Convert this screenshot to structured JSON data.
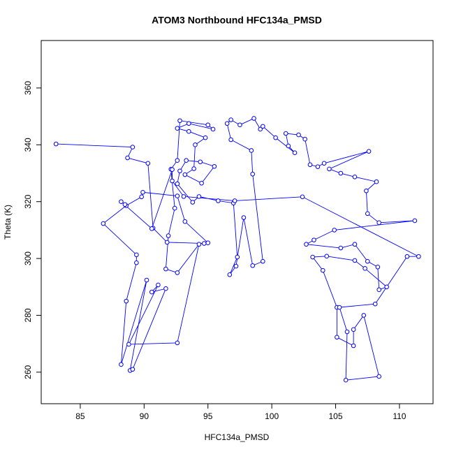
{
  "chart_data": {
    "type": "line",
    "markers": true,
    "title": "ATOM3 Northbound HFC134a_PMSD",
    "x_label": "HFC134a_PMSD",
    "y_label": "Theta (K)",
    "color": "#0000ff",
    "xlim": [
      81.94,
      112.63
    ],
    "ylim": [
      248.9,
      376.7
    ],
    "xticks": [
      85,
      90,
      95,
      100,
      105,
      110
    ],
    "yticks": [
      260,
      280,
      300,
      320,
      340,
      360
    ],
    "x": [
      83.1,
      89.1,
      88.7,
      90.3,
      90.7,
      91.8,
      94.7,
      95,
      93.2,
      92.6,
      89.9,
      89.8,
      88.6,
      86.8,
      89.4,
      89.4,
      88.6,
      88.2,
      90.2,
      88.9,
      89.1,
      91.7,
      90.6,
      91.1,
      88.8,
      92.6,
      94.3,
      92.6,
      91.7,
      91.9,
      92.4,
      92.1,
      92.6,
      92.8,
      95,
      95.4,
      93.5,
      92.6,
      93.5,
      94.8,
      94,
      93.9,
      93.2,
      94.5,
      95.5,
      94.4,
      93.3,
      92.8,
      92.6,
      93.8,
      94.3,
      95.8,
      97,
      97.3,
      96.7,
      97.2,
      97.8,
      98.5,
      99.3,
      98.5,
      98.4,
      96.8,
      96.5,
      96.8,
      97.5,
      98.6,
      99.1,
      99.3,
      100.3,
      101.8,
      101.3,
      101.1,
      102.1,
      102.6,
      103,
      103.6,
      104.1,
      107.6,
      104.5,
      105.4,
      106.5,
      108.2,
      107.4,
      107.5,
      108.4,
      111.2,
      104.9,
      103.3,
      102.7,
      105.4,
      106.5,
      107.5,
      108.3,
      108.4,
      109,
      107.3,
      106.5,
      104.3,
      103.2,
      104,
      105.1,
      105.1,
      106.4,
      106.4,
      107.2,
      108.4,
      105.8,
      105.9,
      105.3,
      108.1,
      110.6,
      111.5,
      102.4,
      97.1,
      93.1,
      92.2,
      92.2,
      90.6,
      88.2,
      88.5
    ],
    "values": [
      340.3,
      339.2,
      335.4,
      333.5,
      310.7,
      305.7,
      305.3,
      305.5,
      313,
      322,
      323.3,
      321.7,
      318.6,
      312.3,
      301.3,
      298.5,
      285,
      262.7,
      292.4,
      260.6,
      261,
      289.4,
      288.2,
      290.7,
      269.8,
      270.3,
      305,
      295,
      296.3,
      308,
      317.7,
      331.4,
      334.5,
      348.5,
      347,
      345.5,
      347.5,
      345.8,
      344.7,
      342.5,
      340,
      331.6,
      329.5,
      326.5,
      332.4,
      334,
      334.5,
      330.8,
      326.3,
      319.8,
      321.8,
      320.3,
      319.5,
      300.5,
      294.3,
      297.3,
      314.4,
      297.5,
      299,
      329.7,
      338,
      341.8,
      347.5,
      348.8,
      347,
      349.3,
      345.5,
      346.5,
      342.5,
      337.2,
      339.6,
      344,
      343.5,
      342,
      333,
      332.3,
      333.5,
      337.7,
      331.5,
      330,
      328.7,
      327,
      323.8,
      315.8,
      312.6,
      313.3,
      310,
      306.5,
      305,
      303.7,
      305,
      299,
      297,
      289,
      290,
      296.5,
      299.3,
      300.8,
      300.5,
      295.8,
      282.8,
      272.3,
      269.3,
      275,
      280,
      258.5,
      257.2,
      274.2,
      282.8,
      284,
      300.7,
      300.7,
      321.7,
      320.3,
      321.8,
      327.3,
      331.3,
      310.5,
      320,
      319
    ]
  }
}
